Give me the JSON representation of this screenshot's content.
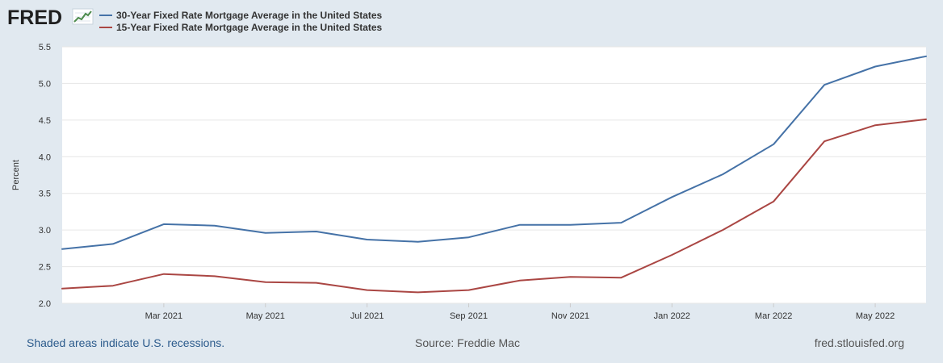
{
  "header": {
    "logo_text": "FRED",
    "logo_icon": "line-chart-icon"
  },
  "chart_data": {
    "type": "line",
    "title": "",
    "xlabel": "",
    "ylabel": "Percent",
    "ylim": [
      2.0,
      5.5
    ],
    "yticks": [
      "2.0",
      "2.5",
      "3.0",
      "3.5",
      "4.0",
      "4.5",
      "5.0",
      "5.5"
    ],
    "xtick_labels": [
      "Mar 2021",
      "May 2021",
      "Jul 2021",
      "Sep 2021",
      "Nov 2021",
      "Jan 2022",
      "Mar 2022",
      "May 2022"
    ],
    "x": [
      "2021-01",
      "2021-02",
      "2021-03",
      "2021-04",
      "2021-05",
      "2021-06",
      "2021-07",
      "2021-08",
      "2021-09",
      "2021-10",
      "2021-11",
      "2021-12",
      "2022-01",
      "2022-02",
      "2022-03",
      "2022-04",
      "2022-05",
      "2022-06"
    ],
    "series": [
      {
        "name": "30-Year Fixed Rate Mortgage Average in the United States",
        "color": "#4572a7",
        "values": [
          2.74,
          2.81,
          3.08,
          3.06,
          2.96,
          2.98,
          2.87,
          2.84,
          2.9,
          3.07,
          3.07,
          3.1,
          3.45,
          3.76,
          4.17,
          4.98,
          5.23,
          5.37
        ]
      },
      {
        "name": "15-Year Fixed Rate Mortgage Average in the United States",
        "color": "#aa4643",
        "values": [
          2.2,
          2.24,
          2.4,
          2.37,
          2.29,
          2.28,
          2.18,
          2.15,
          2.18,
          2.31,
          2.36,
          2.35,
          2.66,
          3.0,
          3.39,
          4.21,
          4.43,
          4.51
        ]
      }
    ],
    "grid": true,
    "legend_position": "top-left"
  },
  "footer": {
    "recession_note": "Shaded areas indicate U.S. recessions.",
    "source": "Source: Freddie Mac",
    "website": "fred.stlouisfed.org"
  }
}
